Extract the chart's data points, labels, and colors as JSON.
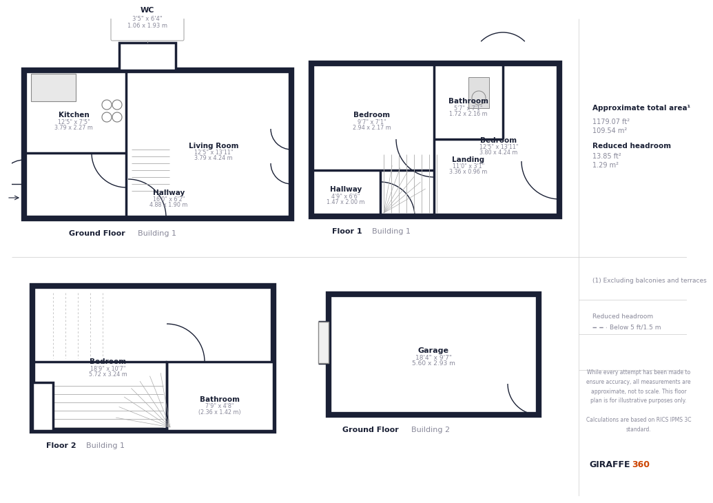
{
  "bg_color": "#ffffff",
  "wall_color": "#1a2035",
  "text_dark": "#1a2035",
  "text_gray": "#888899",
  "text_dim": "#999aaa",
  "page_width": 9.8,
  "page_height": 6.93,
  "approx_area_title": "Approximate total area¹",
  "approx_area_ft": "1179.07 ft²",
  "approx_area_m": "109.54 m²",
  "reduced_headroom_title": "Reduced headroom",
  "reduced_headroom_ft": "13.85 ft²",
  "reduced_headroom_m": "1.29 m²",
  "footnote1": "(1) Excluding balconies and terraces",
  "legend_reduced": "Reduced headroom",
  "legend_below": "Below 5 ft/1.5 m",
  "disclaimer": "While every attempt has been made to\nensure accuracy, all measurements are\napproximate, not to scale. This floor\nplan is for illustrative purposes only.\n\nCalculations are based on RICS IPMS 3C\nstandard.",
  "brand_black": "GIRAFFE",
  "brand_orange": "360"
}
